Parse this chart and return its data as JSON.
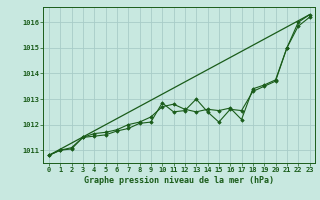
{
  "bg_color": "#c8e8e0",
  "grid_color": "#a8ccc8",
  "line_color": "#1a5c1a",
  "marker_color": "#1a5c1a",
  "title": "Graphe pression niveau de la mer (hPa)",
  "xlabel_ticks": [
    0,
    1,
    2,
    3,
    4,
    5,
    6,
    7,
    8,
    9,
    10,
    11,
    12,
    13,
    14,
    15,
    16,
    17,
    18,
    19,
    20,
    21,
    22,
    23
  ],
  "ylim": [
    1010.5,
    1016.6
  ],
  "yticks": [
    1011,
    1012,
    1013,
    1014,
    1015,
    1016
  ],
  "xlim": [
    -0.5,
    23.5
  ],
  "series1_x": [
    0,
    1,
    2,
    3,
    4,
    5,
    6,
    7,
    8,
    9,
    10,
    11,
    12,
    13,
    14,
    15,
    16,
    17,
    18,
    19,
    20,
    21,
    22,
    23
  ],
  "series1_y": [
    1010.8,
    1011.0,
    1011.05,
    1011.5,
    1011.55,
    1011.6,
    1011.75,
    1011.85,
    1012.05,
    1012.1,
    1012.85,
    1012.5,
    1012.55,
    1013.0,
    1012.5,
    1012.1,
    1012.6,
    1012.55,
    1013.3,
    1013.5,
    1013.7,
    1015.0,
    1015.85,
    1016.2
  ],
  "series2_x": [
    0,
    1,
    2,
    3,
    4,
    5,
    6,
    7,
    8,
    9,
    10,
    11,
    12,
    13,
    14,
    15,
    16,
    17,
    18,
    19,
    20,
    21,
    22,
    23
  ],
  "series2_y": [
    1010.8,
    1011.0,
    1011.1,
    1011.5,
    1011.65,
    1011.7,
    1011.8,
    1012.0,
    1012.1,
    1012.3,
    1012.7,
    1012.8,
    1012.6,
    1012.5,
    1012.6,
    1012.55,
    1012.65,
    1012.2,
    1013.4,
    1013.55,
    1013.75,
    1015.0,
    1016.0,
    1016.3
  ],
  "series3_x": [
    0,
    23
  ],
  "series3_y": [
    1010.8,
    1016.3
  ]
}
